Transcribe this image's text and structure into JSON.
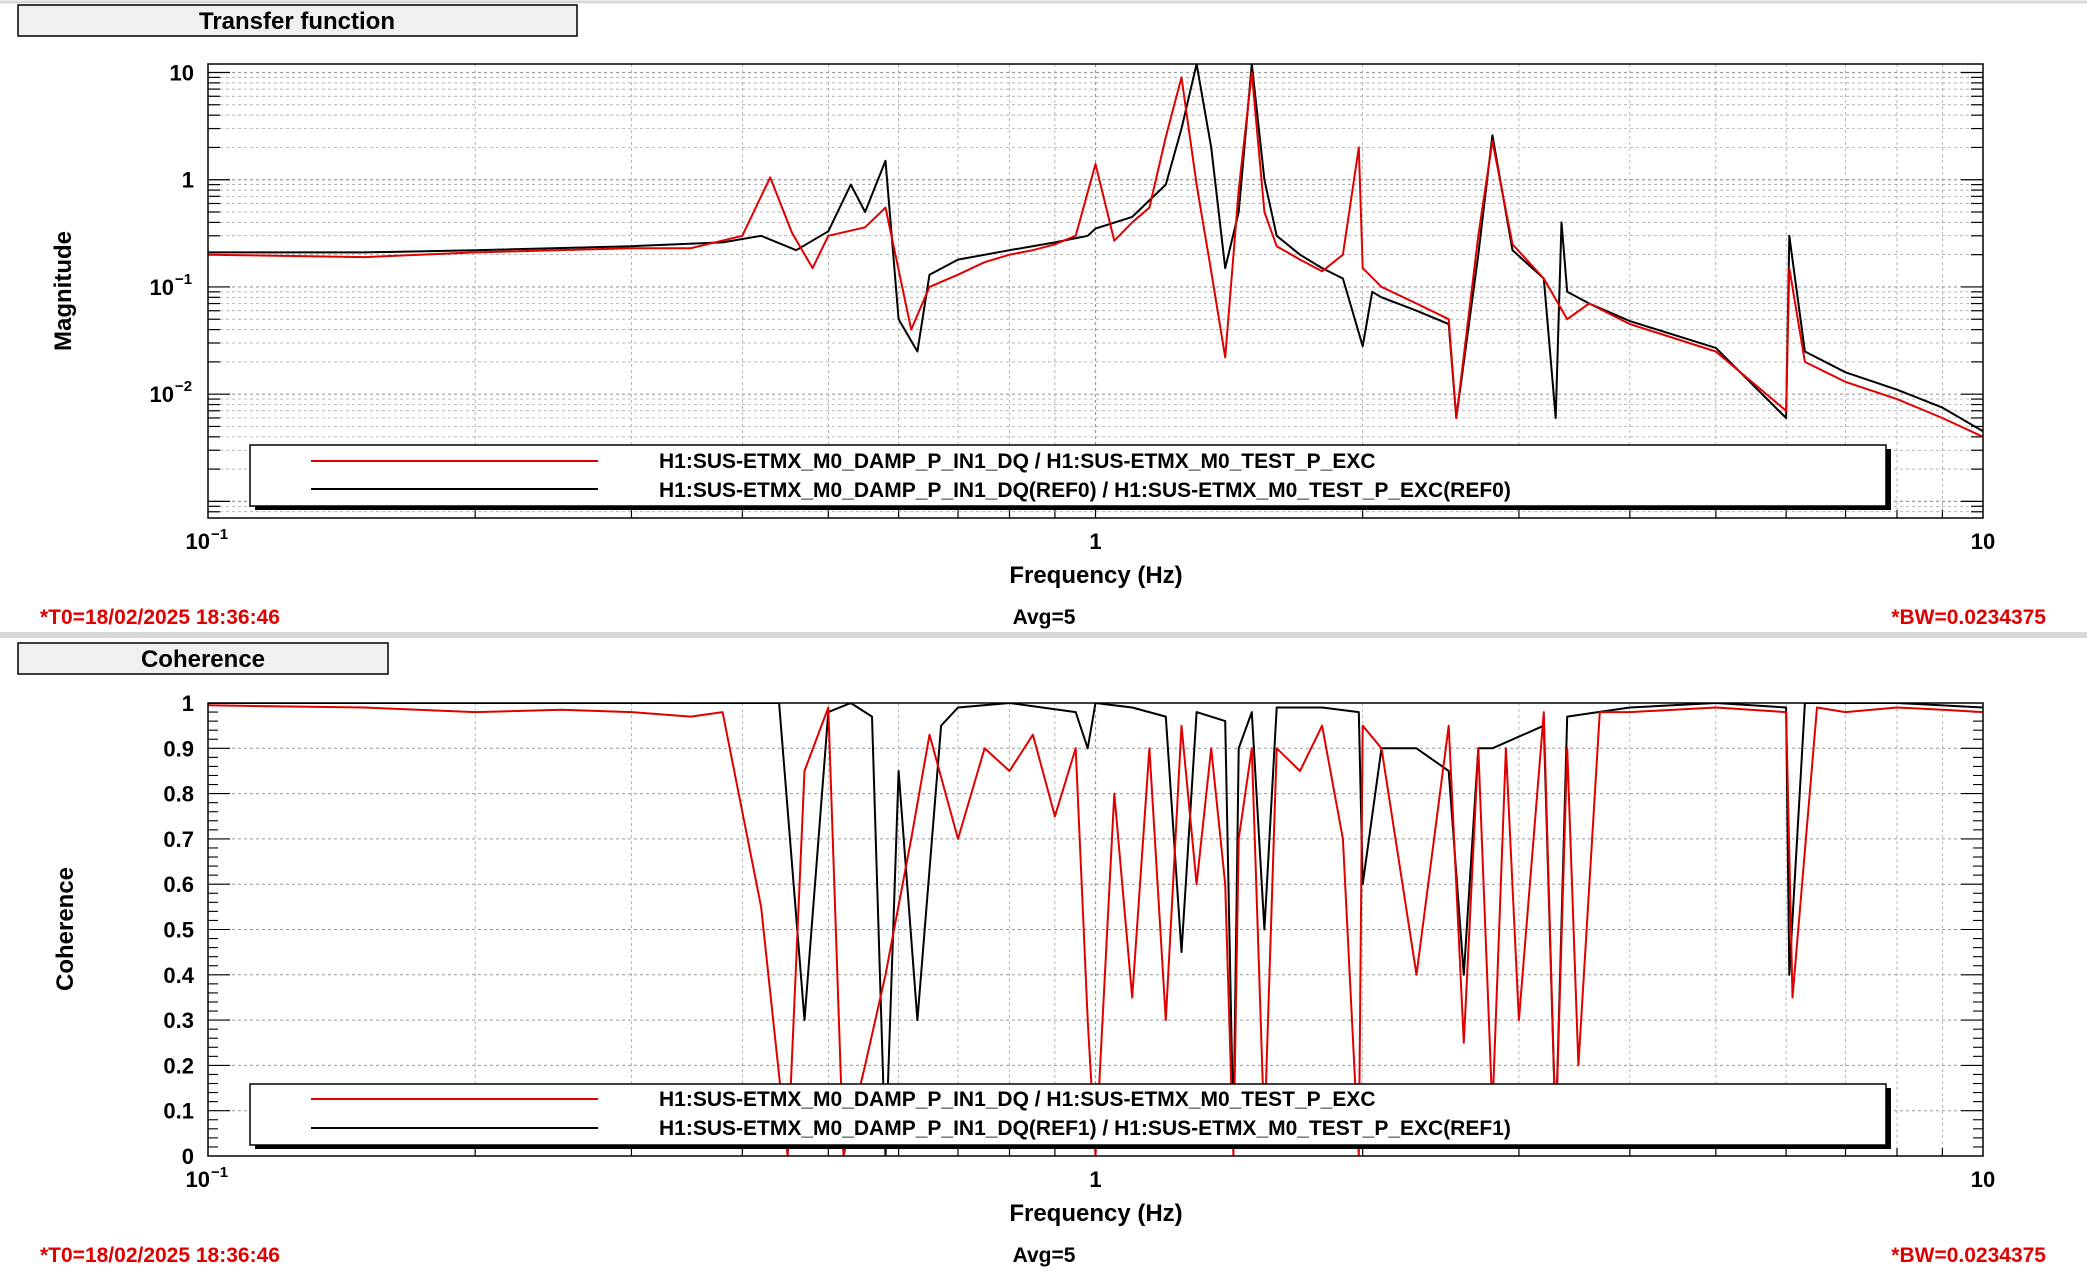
{
  "colors": {
    "live": "#e00000",
    "reference": "#000000",
    "annotation": "#e00000",
    "grid": "#9a9a9a",
    "separator": "#d8d8d8"
  },
  "footer": {
    "t0": "*T0=18/02/2025 18:36:46",
    "avg": "Avg=5",
    "bw": "*BW=0.0234375"
  },
  "chart_data": [
    {
      "type": "line",
      "title": "Transfer function",
      "xlabel": "Frequency (Hz)",
      "ylabel": "Magnitude",
      "xscale": "log",
      "yscale": "log",
      "xlim": [
        0.1,
        10
      ],
      "ylim": [
        0.0007,
        12
      ],
      "grid": true,
      "legend_position": "bottom",
      "x_ticks": [
        {
          "value": 0.1,
          "base": "10",
          "exp": "−1"
        },
        {
          "value": 1,
          "base": "1",
          "exp": ""
        },
        {
          "value": 10,
          "base": "10",
          "exp": ""
        }
      ],
      "y_ticks": [
        {
          "value": 10,
          "base": "10",
          "exp": ""
        },
        {
          "value": 1,
          "base": "1",
          "exp": ""
        },
        {
          "value": 0.1,
          "base": "10",
          "exp": "−1"
        },
        {
          "value": 0.01,
          "base": "10",
          "exp": "−2"
        }
      ],
      "series": [
        {
          "name": "H1:SUS-ETMX_M0_DAMP_P_IN1_DQ / H1:SUS-ETMX_M0_TEST_P_EXC",
          "color": "#e00000",
          "x": [
            0.1,
            0.15,
            0.2,
            0.3,
            0.35,
            0.4,
            0.43,
            0.455,
            0.48,
            0.5,
            0.55,
            0.58,
            0.62,
            0.65,
            0.7,
            0.75,
            0.8,
            0.85,
            0.9,
            0.95,
            1.0,
            1.05,
            1.1,
            1.15,
            1.2,
            1.25,
            1.3,
            1.35,
            1.4,
            1.45,
            1.5,
            1.55,
            1.6,
            1.7,
            1.8,
            1.9,
            1.98,
            2.0,
            2.1,
            2.3,
            2.5,
            2.55,
            2.7,
            2.8,
            2.95,
            3.2,
            3.4,
            3.6,
            4.0,
            5.0,
            6.0,
            6.05,
            6.3,
            7.0,
            8.0,
            9.0,
            10.0
          ],
          "y": [
            0.2,
            0.19,
            0.21,
            0.23,
            0.23,
            0.3,
            1.05,
            0.32,
            0.15,
            0.3,
            0.36,
            0.55,
            0.04,
            0.1,
            0.13,
            0.17,
            0.2,
            0.22,
            0.25,
            0.3,
            1.4,
            0.27,
            0.4,
            0.55,
            2.5,
            9.0,
            0.9,
            0.14,
            0.022,
            0.8,
            10.0,
            0.5,
            0.24,
            0.18,
            0.14,
            0.2,
            2.0,
            0.15,
            0.1,
            0.07,
            0.05,
            0.006,
            0.3,
            2.3,
            0.25,
            0.12,
            0.05,
            0.07,
            0.045,
            0.025,
            0.007,
            0.15,
            0.02,
            0.013,
            0.009,
            0.006,
            0.004
          ]
        },
        {
          "name": "H1:SUS-ETMX_M0_DAMP_P_IN1_DQ(REF0) / H1:SUS-ETMX_M0_TEST_P_EXC(REF0)",
          "color": "#000000",
          "x": [
            0.1,
            0.15,
            0.2,
            0.3,
            0.38,
            0.42,
            0.46,
            0.5,
            0.53,
            0.55,
            0.58,
            0.6,
            0.63,
            0.65,
            0.7,
            0.8,
            0.9,
            0.98,
            1.0,
            1.1,
            1.2,
            1.25,
            1.3,
            1.35,
            1.4,
            1.45,
            1.5,
            1.55,
            1.6,
            1.7,
            1.8,
            1.9,
            2.0,
            2.05,
            2.1,
            2.3,
            2.5,
            2.55,
            2.7,
            2.8,
            2.95,
            3.2,
            3.3,
            3.35,
            3.4,
            3.6,
            4.0,
            5.0,
            6.0,
            6.05,
            6.3,
            7.0,
            8.0,
            9.0,
            10.0
          ],
          "y": [
            0.21,
            0.21,
            0.22,
            0.24,
            0.26,
            0.3,
            0.22,
            0.33,
            0.9,
            0.5,
            1.5,
            0.05,
            0.025,
            0.13,
            0.18,
            0.22,
            0.26,
            0.3,
            0.35,
            0.45,
            0.9,
            3.0,
            12.0,
            2.0,
            0.15,
            0.5,
            12.0,
            1.0,
            0.3,
            0.2,
            0.15,
            0.12,
            0.028,
            0.09,
            0.08,
            0.06,
            0.045,
            0.006,
            0.2,
            2.6,
            0.22,
            0.12,
            0.006,
            0.4,
            0.09,
            0.07,
            0.048,
            0.027,
            0.006,
            0.3,
            0.025,
            0.016,
            0.011,
            0.0075,
            0.0045
          ]
        }
      ]
    },
    {
      "type": "line",
      "title": "Coherence",
      "xlabel": "Frequency (Hz)",
      "ylabel": "Coherence",
      "xscale": "log",
      "xlim": [
        0.1,
        10
      ],
      "ylim": [
        0,
        1
      ],
      "grid": true,
      "legend_position": "bottom",
      "x_ticks": [
        {
          "value": 0.1,
          "base": "10",
          "exp": "−1"
        },
        {
          "value": 1,
          "base": "1",
          "exp": ""
        },
        {
          "value": 10,
          "base": "10",
          "exp": ""
        }
      ],
      "y_ticks": [
        {
          "value": 0,
          "base": "0",
          "exp": ""
        },
        {
          "value": 0.1,
          "base": "0.1",
          "exp": ""
        },
        {
          "value": 0.2,
          "base": "0.2",
          "exp": ""
        },
        {
          "value": 0.3,
          "base": "0.3",
          "exp": ""
        },
        {
          "value": 0.4,
          "base": "0.4",
          "exp": ""
        },
        {
          "value": 0.5,
          "base": "0.5",
          "exp": ""
        },
        {
          "value": 0.6,
          "base": "0.6",
          "exp": ""
        },
        {
          "value": 0.7,
          "base": "0.7",
          "exp": ""
        },
        {
          "value": 0.8,
          "base": "0.8",
          "exp": ""
        },
        {
          "value": 0.9,
          "base": "0.9",
          "exp": ""
        },
        {
          "value": 1,
          "base": "1",
          "exp": ""
        }
      ],
      "series": [
        {
          "name": "H1:SUS-ETMX_M0_DAMP_P_IN1_DQ / H1:SUS-ETMX_M0_TEST_P_EXC",
          "color": "#e00000",
          "x": [
            0.1,
            0.15,
            0.2,
            0.25,
            0.3,
            0.35,
            0.38,
            0.42,
            0.45,
            0.47,
            0.5,
            0.52,
            0.55,
            0.58,
            0.62,
            0.65,
            0.7,
            0.75,
            0.8,
            0.85,
            0.9,
            0.95,
            0.98,
            1.0,
            1.05,
            1.1,
            1.15,
            1.2,
            1.25,
            1.3,
            1.35,
            1.4,
            1.43,
            1.45,
            1.5,
            1.55,
            1.6,
            1.7,
            1.8,
            1.9,
            1.98,
            2.0,
            2.1,
            2.3,
            2.5,
            2.6,
            2.7,
            2.8,
            2.9,
            3.0,
            3.2,
            3.3,
            3.4,
            3.5,
            3.7,
            4.0,
            5.0,
            6.0,
            6.1,
            6.5,
            7.0,
            8.0,
            9.0,
            10.0
          ],
          "y": [
            0.995,
            0.99,
            0.98,
            0.985,
            0.98,
            0.97,
            0.98,
            0.55,
            0.0,
            0.85,
            0.99,
            0.0,
            0.2,
            0.4,
            0.7,
            0.93,
            0.7,
            0.9,
            0.85,
            0.93,
            0.75,
            0.9,
            0.3,
            0.0,
            0.8,
            0.35,
            0.9,
            0.3,
            0.95,
            0.6,
            0.9,
            0.6,
            0.0,
            0.7,
            0.9,
            0.05,
            0.9,
            0.85,
            0.95,
            0.7,
            0.0,
            0.95,
            0.9,
            0.4,
            0.95,
            0.25,
            0.9,
            0.1,
            0.9,
            0.3,
            0.98,
            0.05,
            0.9,
            0.2,
            0.98,
            0.98,
            0.99,
            0.98,
            0.35,
            0.99,
            0.98,
            0.99,
            0.985,
            0.98
          ]
        },
        {
          "name": "H1:SUS-ETMX_M0_DAMP_P_IN1_DQ(REF1) / H1:SUS-ETMX_M0_TEST_P_EXC(REF1)",
          "color": "#000000",
          "x": [
            0.1,
            0.2,
            0.3,
            0.4,
            0.44,
            0.47,
            0.5,
            0.53,
            0.56,
            0.58,
            0.6,
            0.63,
            0.67,
            0.7,
            0.8,
            0.95,
            0.98,
            1.0,
            1.1,
            1.2,
            1.25,
            1.3,
            1.4,
            1.43,
            1.45,
            1.5,
            1.55,
            1.6,
            1.8,
            1.98,
            2.0,
            2.1,
            2.3,
            2.5,
            2.6,
            2.7,
            2.8,
            3.2,
            3.3,
            3.4,
            4.0,
            5.0,
            6.0,
            6.05,
            6.3,
            8.0,
            10.0
          ],
          "y": [
            1.0,
            1.0,
            1.0,
            1.0,
            1.0,
            0.3,
            0.98,
            1.0,
            0.97,
            0.0,
            0.85,
            0.3,
            0.95,
            0.99,
            1.0,
            0.98,
            0.9,
            1.0,
            0.99,
            0.97,
            0.45,
            0.98,
            0.96,
            0.05,
            0.9,
            0.98,
            0.5,
            0.99,
            0.99,
            0.98,
            0.6,
            0.9,
            0.9,
            0.85,
            0.4,
            0.9,
            0.9,
            0.95,
            0.05,
            0.97,
            0.99,
            1.0,
            0.99,
            0.4,
            1.0,
            1.0,
            0.99
          ]
        }
      ]
    }
  ]
}
